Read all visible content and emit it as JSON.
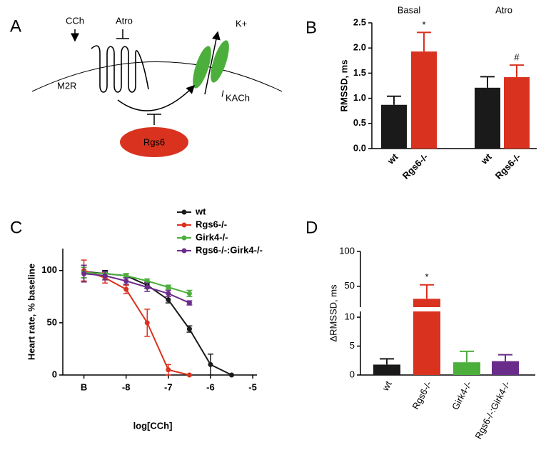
{
  "diagram": {
    "panel": "A",
    "agonist": "CCh",
    "antagonist": "Atro",
    "ion": "K+",
    "receptor": "M2R",
    "current": {
      "symbol": "I",
      "subscript": "KACh"
    },
    "regulator": "Rgs6"
  },
  "chart_data": [
    {
      "type": "bar",
      "panel": "B",
      "ylabel": "RMSSD, ms",
      "group_labels": [
        "Basal",
        "Atro"
      ],
      "categories": [
        "wt",
        "Rgs6-/-",
        "wt",
        "Rgs6-/-"
      ],
      "values": [
        0.87,
        1.93,
        1.21,
        1.42
      ],
      "errors": [
        0.17,
        0.38,
        0.22,
        0.24
      ],
      "colors": [
        "#1a1a1a",
        "#d9321f",
        "#1a1a1a",
        "#d9321f"
      ],
      "value_annotations": [
        null,
        "*",
        null,
        "#"
      ],
      "ylim": [
        0,
        2.5
      ],
      "yticks": [
        {
          "value": 0,
          "label": "0.0"
        },
        0.5,
        {
          "value": 1,
          "label": "1.0"
        },
        1.5,
        {
          "value": 2,
          "label": "2.0"
        },
        2.5
      ]
    },
    {
      "type": "line",
      "panel": "C",
      "xlabel": "log[CCh]",
      "ylabel": "Heart rate, % baseline",
      "x": [
        -9,
        -8.5,
        -8,
        -7.5,
        -7,
        -6.5,
        -6,
        -5.5
      ],
      "series": [
        {
          "name": "wt",
          "color": "#1a1a1a",
          "values": [
            99,
            97,
            95,
            86,
            72,
            44,
            10,
            0
          ],
          "errors": [
            6,
            3,
            2,
            3,
            3,
            3,
            10,
            null
          ]
        },
        {
          "name": "Rgs6-/-",
          "color": "#d9321f",
          "values": [
            100,
            93,
            82,
            50,
            5,
            0,
            null,
            null
          ],
          "errors": [
            10,
            5,
            4,
            13,
            5,
            null,
            null,
            null
          ]
        },
        {
          "name": "Girk4-/-",
          "color": "#4caf3c",
          "values": [
            98,
            97,
            95,
            90,
            84,
            78,
            null,
            null
          ],
          "errors": [
            5,
            2,
            2,
            2,
            2,
            3,
            null,
            null
          ]
        },
        {
          "name": "Rgs6-/-:Girk4-/-",
          "color": "#6a2c8a",
          "values": [
            97,
            95,
            90,
            84,
            78,
            69,
            null,
            null
          ],
          "errors": [
            8,
            4,
            3,
            4,
            3,
            2,
            null,
            null
          ]
        }
      ],
      "xlim": [
        -9.5,
        -4.9
      ],
      "xticks": [
        {
          "value": -9,
          "label": "B"
        },
        -8,
        -7,
        -6,
        -5
      ],
      "ylim": [
        0,
        121
      ],
      "yticks": [
        0,
        50,
        100
      ]
    },
    {
      "type": "bar",
      "panel": "D",
      "ylabel": "ΔRMSSD, ms",
      "categories": [
        "wt",
        "Rgs6-/-",
        "Girk4-/-",
        "Rgs6-/-:Girk4-/-"
      ],
      "values": [
        1.8,
        32,
        2.2,
        2.4
      ],
      "errors": [
        1.0,
        20,
        1.9,
        1.1
      ],
      "colors": [
        "#1a1a1a",
        "#d9321f",
        "#4caf3c",
        "#6a2c8a"
      ],
      "value_annotations": [
        null,
        "*",
        null,
        null
      ],
      "ylim": [
        0,
        100
      ],
      "axis_break": [
        11,
        20
      ],
      "yticks": [
        0,
        5,
        10,
        50,
        100
      ]
    }
  ]
}
